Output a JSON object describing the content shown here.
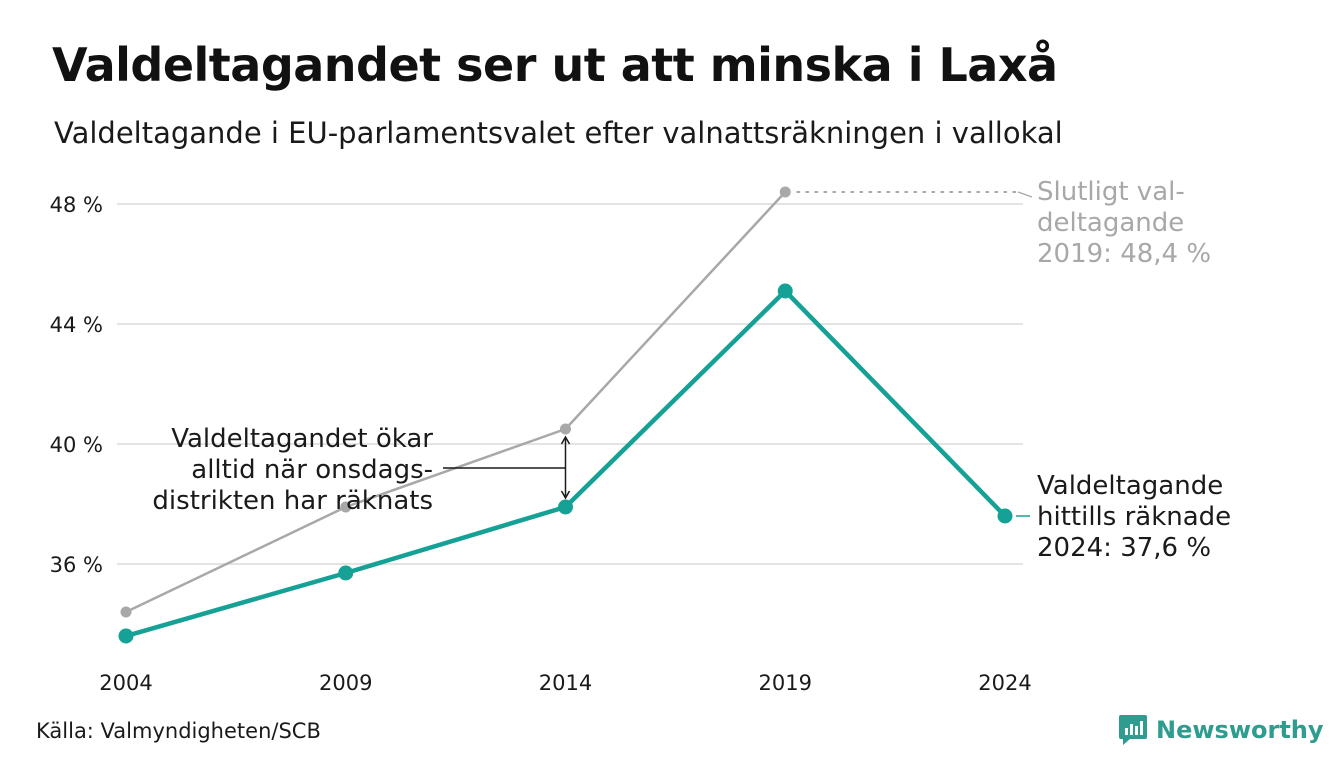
{
  "title": "Valdeltagandet ser ut att minska i Laxå",
  "subtitle": "Valdeltagande i EU-parlamentsvalet efter valnattsräkningen i vallokal",
  "source": "Källa: Valmyndigheten/SCB",
  "brand": {
    "name": "Newsworthy",
    "icon": "newsworthy-logo-icon",
    "color": "#2e9c8f"
  },
  "chart_data": {
    "type": "line",
    "x": [
      "2004",
      "2009",
      "2014",
      "2019",
      "2024"
    ],
    "y_ticks": [
      {
        "value": 36,
        "label": "36 %"
      },
      {
        "value": 40,
        "label": "40 %"
      },
      {
        "value": 44,
        "label": "44 %"
      },
      {
        "value": 48,
        "label": "48 %"
      }
    ],
    "ylim": [
      33,
      49
    ],
    "grid": true,
    "series": [
      {
        "key": "final",
        "color": "#a8a8a8",
        "values": [
          34.4,
          37.9,
          40.5,
          48.4,
          null
        ]
      },
      {
        "key": "counted",
        "color": "#16a196",
        "values": [
          33.6,
          35.7,
          37.9,
          45.1,
          37.6
        ]
      }
    ],
    "annotations": {
      "final_2019": [
        "Slutligt val-",
        "deltagande",
        "2019: 48,4 %"
      ],
      "counted_2024": [
        "Valdeltagande",
        "hittills räknade",
        "2024: 37,6 %"
      ],
      "note": [
        "Valdeltagandet ökar",
        "alltid när onsdags-",
        "distrikten har räknats"
      ]
    }
  }
}
